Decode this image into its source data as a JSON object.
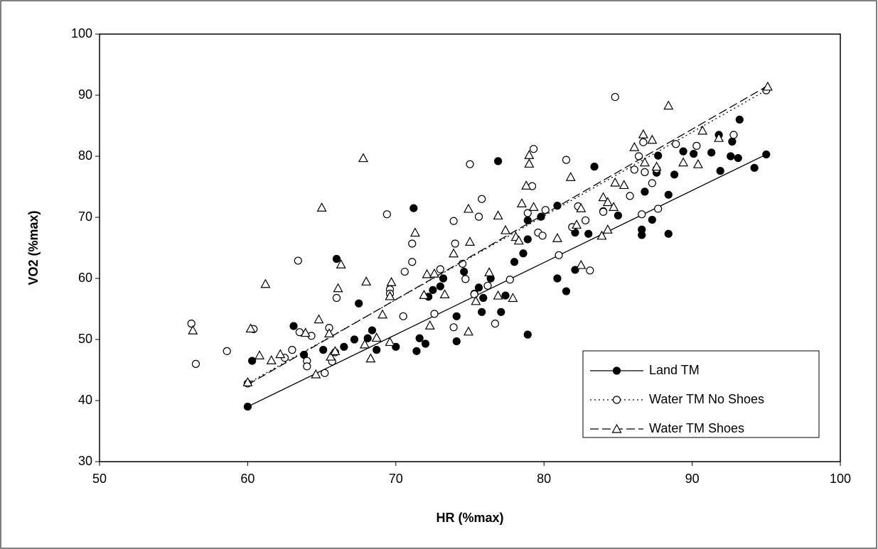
{
  "chart_data": {
    "type": "scatter",
    "xlabel": "HR (%max)",
    "ylabel": "VO2 (%max)",
    "xlim": [
      50,
      100
    ],
    "xticks": [
      50,
      60,
      70,
      80,
      90,
      100
    ],
    "ylim": [
      30,
      100
    ],
    "yticks": [
      30,
      40,
      50,
      60,
      70,
      80,
      90,
      100
    ],
    "grid": false,
    "legend_position": "lower right",
    "series": [
      {
        "name": "Land TM",
        "color": "#000000",
        "marker": "filled-circle",
        "line_style": "solid",
        "x": [
          60,
          60.3,
          63.1,
          63.8,
          65.1,
          66,
          66.5,
          67.2,
          67.5,
          68.1,
          68.4,
          68.7,
          70,
          71.2,
          71.4,
          71.6,
          72,
          72.2,
          72.5,
          73,
          73.2,
          74.1,
          74.1,
          74.6,
          75.3,
          75.6,
          75.8,
          75.9,
          76.4,
          76.9,
          77.1,
          77.4,
          78,
          78.6,
          78.9,
          78.9,
          78.9,
          79.8,
          80.9,
          80.9,
          81.5,
          82.1,
          82.1,
          83,
          83.4,
          84,
          85,
          86.6,
          86.6,
          86.8,
          87.3,
          87.6,
          87.7,
          88.4,
          88.4,
          88.8,
          89.4,
          90.1,
          91.3,
          91.8,
          91.9,
          92.6,
          92.7,
          93.1,
          93.2,
          94.2,
          95
        ],
        "values": [
          39,
          46.5,
          52.2,
          47.5,
          48.3,
          63.2,
          48.8,
          50,
          55.9,
          50.2,
          51.5,
          48.3,
          48.8,
          71.5,
          48.1,
          50.2,
          49.3,
          57,
          58.1,
          58.7,
          60,
          49.7,
          53.8,
          61.1,
          57.5,
          58.5,
          54.5,
          56.8,
          60,
          79.2,
          54.5,
          57.2,
          62.7,
          64.1,
          50.8,
          66.4,
          69.5,
          70.1,
          60,
          71.9,
          57.9,
          67.5,
          61.4,
          67.3,
          78.3,
          71,
          70.3,
          67.1,
          68,
          74.2,
          69.6,
          77.3,
          80.1,
          73.7,
          67.3,
          77,
          80.8,
          80.4,
          80.6,
          83.5,
          77.6,
          80,
          82.4,
          79.7,
          86,
          78.1,
          80.3
        ],
        "trend": {
          "x": [
            60,
            95
          ],
          "values": [
            39,
            80.3
          ]
        }
      },
      {
        "name": "Water TM No Shoes",
        "color": "#000000",
        "marker": "open-circle",
        "line_style": "dotted",
        "x": [
          56.2,
          56.5,
          58.6,
          60.4,
          62.5,
          63,
          63.4,
          63.5,
          64,
          64,
          64.3,
          65.2,
          65.5,
          65.7,
          65.9,
          66,
          69.4,
          69.6,
          69.6,
          70.5,
          70.6,
          71.1,
          71.1,
          72.6,
          73,
          73.9,
          73.9,
          74,
          74.5,
          74.7,
          75,
          75.3,
          75.6,
          75.8,
          76.2,
          76.7,
          77.7,
          78.9,
          79.2,
          79.3,
          79.6,
          79.9,
          80.1,
          81,
          81.5,
          81.9,
          82.3,
          82.8,
          83.1,
          84,
          84.8,
          85.8,
          86.1,
          86.4,
          86.6,
          86.7,
          86.8,
          87.3,
          87.6,
          87.7,
          88.9,
          90.3,
          92.8,
          95,
          60
        ],
        "values": [
          52.6,
          46,
          48.1,
          51.7,
          47,
          48.3,
          62.9,
          51.2,
          46.5,
          45.6,
          50.6,
          44.5,
          51.9,
          46.4,
          47.9,
          56.8,
          70.5,
          58.2,
          57.5,
          53.8,
          61.1,
          62.7,
          65.7,
          54.2,
          61.5,
          69.4,
          52,
          65.7,
          62.4,
          59.9,
          78.7,
          57.4,
          70.1,
          73,
          58.8,
          52.6,
          59.8,
          70.7,
          75.1,
          81.2,
          67.5,
          67,
          71.2,
          63.8,
          79.4,
          68.4,
          71.8,
          69.5,
          61.3,
          70.9,
          89.7,
          73.5,
          77.8,
          80,
          70.5,
          82.3,
          77.4,
          75.6,
          77.9,
          71.4,
          82,
          81.7,
          83.5,
          90.8,
          42.8
        ],
        "trend": {
          "x": [
            60,
            95
          ],
          "values": [
            42.8,
            90.8
          ]
        }
      },
      {
        "name": "Water TM Shoes",
        "color": "#000000",
        "marker": "triangle",
        "line_style": "dashed",
        "x": [
          56.3,
          60,
          60.2,
          60.8,
          61.2,
          61.6,
          62.2,
          63.9,
          64.6,
          64.8,
          65,
          65.5,
          65.6,
          65.9,
          66.1,
          66.3,
          67.8,
          67.9,
          68,
          68.3,
          68.7,
          69.1,
          69.6,
          69.6,
          69.7,
          71.3,
          71.9,
          72.1,
          72.3,
          72.6,
          73.3,
          73.9,
          74.9,
          74.9,
          75,
          75.4,
          76.3,
          76.9,
          76.9,
          77.4,
          77.9,
          78.1,
          78.3,
          78.5,
          78.8,
          79,
          79,
          79.3,
          80.9,
          81.8,
          82.2,
          82.5,
          82.5,
          83.9,
          84,
          84.3,
          84.3,
          84.7,
          84.8,
          85.4,
          86.1,
          86.7,
          86.8,
          87.3,
          87.6,
          88.4,
          89.4,
          90.4,
          90.7,
          91.8,
          95.1
        ],
        "values": [
          51.5,
          43,
          51.8,
          47.4,
          59.1,
          46.6,
          47.6,
          51.1,
          44.3,
          53.3,
          71.6,
          51,
          47.2,
          48.1,
          58.4,
          62.3,
          79.7,
          49.2,
          59.5,
          46.9,
          50.3,
          54.1,
          49.6,
          57.1,
          59.4,
          67.5,
          57.3,
          60.7,
          52.3,
          60.8,
          57.4,
          64.1,
          71.4,
          51.3,
          66,
          56.3,
          61,
          70.3,
          57.2,
          67.9,
          56.8,
          66.8,
          66.2,
          72.3,
          75.2,
          78.8,
          80.2,
          71.7,
          66.6,
          76.6,
          68.8,
          62.2,
          71.5,
          67,
          73.3,
          68,
          72.5,
          71.7,
          75.7,
          75.3,
          81.5,
          83.6,
          79,
          82.7,
          78.3,
          88.3,
          79,
          78.7,
          84.2,
          83,
          91.4
        ],
        "trend": {
          "x": [
            60,
            95
          ],
          "values": [
            42.6,
            91.4
          ]
        }
      }
    ]
  }
}
